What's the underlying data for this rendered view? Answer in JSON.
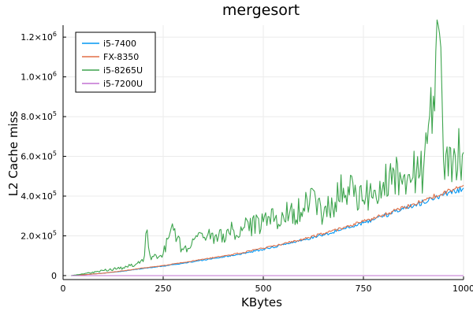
{
  "chart_data": {
    "type": "line",
    "title": "mergesort",
    "xlabel": "KBytes",
    "ylabel": "L2 Cache miss",
    "xlim": [
      0,
      1000
    ],
    "ylim": [
      -20000,
      1260000
    ],
    "grid": true,
    "legend_position": "top-left",
    "x_ticks": [
      {
        "value": 0,
        "label": "0"
      },
      {
        "value": 250,
        "label": "250"
      },
      {
        "value": 500,
        "label": "500"
      },
      {
        "value": 750,
        "label": "750"
      },
      {
        "value": 1000,
        "label": "1000"
      }
    ],
    "y_ticks": [
      {
        "value": 0,
        "label": "0",
        "exp": ""
      },
      {
        "value": 200000,
        "label": "2.0×10",
        "exp": "5"
      },
      {
        "value": 400000,
        "label": "4.0×10",
        "exp": "5"
      },
      {
        "value": 600000,
        "label": "6.0×10",
        "exp": "5"
      },
      {
        "value": 800000,
        "label": "8.0×10",
        "exp": "5"
      },
      {
        "value": 1000000,
        "label": "1.0×10",
        "exp": "6"
      },
      {
        "value": 1200000,
        "label": "1.2×10",
        "exp": "6"
      }
    ],
    "series": [
      {
        "name": "i5-7400",
        "color": "#0097f4",
        "x": [
          20,
          50,
          100,
          150,
          200,
          250,
          300,
          350,
          400,
          450,
          500,
          550,
          600,
          650,
          700,
          750,
          800,
          850,
          900,
          950,
          1000
        ],
        "y": [
          0,
          4000,
          12000,
          22000,
          36000,
          48000,
          62000,
          78000,
          94000,
          112000,
          132000,
          155000,
          180000,
          205000,
          235000,
          265000,
          300000,
          335000,
          370000,
          405000,
          440000
        ]
      },
      {
        "name": "FX-8350",
        "color": "#e26f46",
        "x": [
          20,
          50,
          100,
          150,
          200,
          250,
          300,
          350,
          400,
          450,
          500,
          550,
          600,
          650,
          700,
          750,
          800,
          850,
          900,
          950,
          1000
        ],
        "y": [
          0,
          4000,
          12000,
          24000,
          38000,
          50000,
          66000,
          82000,
          98000,
          116000,
          138000,
          160000,
          185000,
          212000,
          242000,
          272000,
          305000,
          342000,
          380000,
          418000,
          455000
        ]
      },
      {
        "name": "i5-8265U",
        "color": "#3da44d",
        "x": [
          20,
          50,
          100,
          150,
          200,
          210,
          220,
          250,
          270,
          300,
          350,
          400,
          450,
          500,
          550,
          600,
          640,
          650,
          700,
          750,
          800,
          850,
          900,
          940,
          950,
          1000
        ],
        "y": [
          0,
          8000,
          25000,
          40000,
          70000,
          230000,
          80000,
          110000,
          240000,
          130000,
          190000,
          210000,
          240000,
          270000,
          300000,
          340000,
          390000,
          300000,
          440000,
          380000,
          470000,
          500000,
          530000,
          1220000,
          580000,
          620000
        ]
      },
      {
        "name": "i5-7200U",
        "color": "#c271d2",
        "x": [
          20,
          1000
        ],
        "y": [
          0,
          0
        ]
      }
    ]
  }
}
